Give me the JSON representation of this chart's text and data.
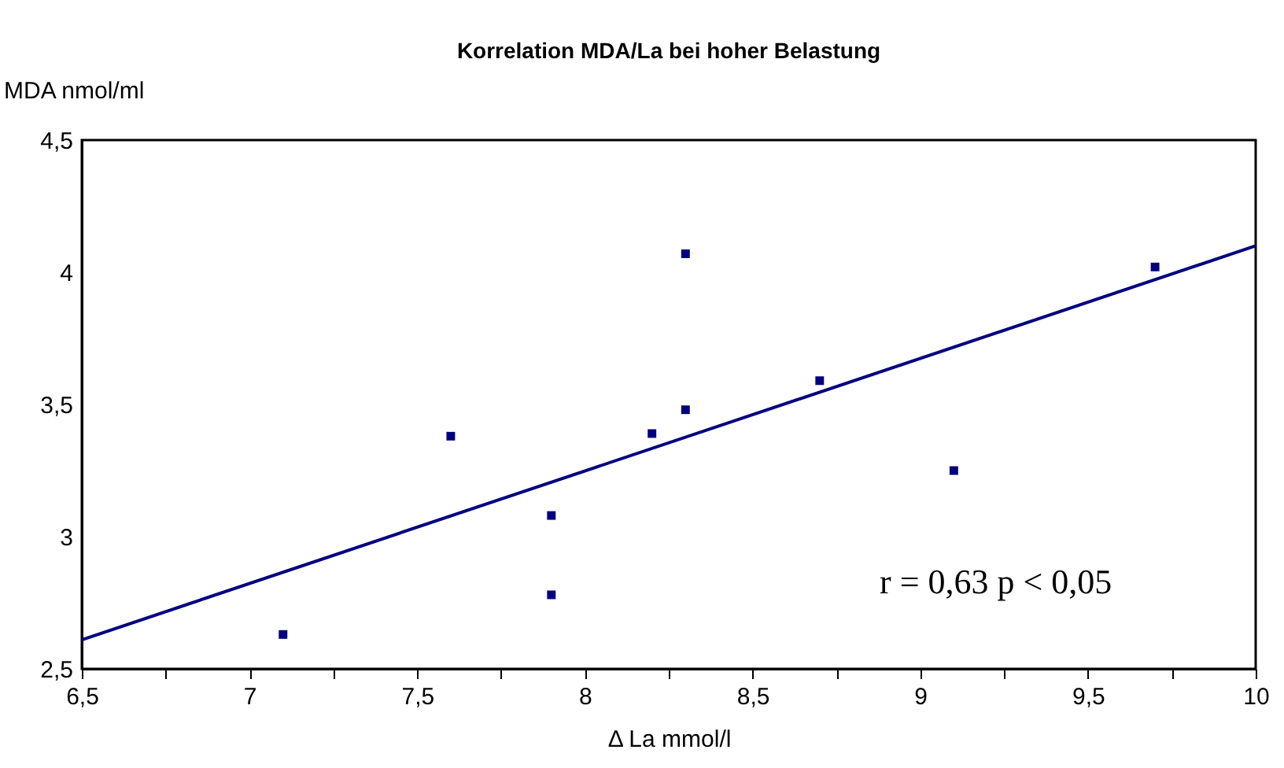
{
  "chart_data": {
    "type": "scatter",
    "title": "Korrelation MDA/La bei hoher Belastung",
    "xlabel": "Δ La mmol/l",
    "ylabel": "MDA nmol/ml",
    "annotations": [
      "r = 0,63  p < 0,05"
    ],
    "series": [
      {
        "color": "#000080",
        "x": [
          7.1,
          7.6,
          7.9,
          7.9,
          8.2,
          8.3,
          8.3,
          8.7,
          9.1,
          9.7
        ],
        "values": [
          2.63,
          3.38,
          3.08,
          2.78,
          3.39,
          4.07,
          3.48,
          3.59,
          3.25,
          4.02
        ]
      },
      {
        "type": "line",
        "marker": "none",
        "color": "#000080",
        "x": [
          6.5,
          10
        ],
        "values": [
          2.61,
          4.1
        ]
      }
    ],
    "marker": "square",
    "grid": false,
    "xlim": [
      6.5,
      10
    ],
    "xticks": [
      {
        "value": 6.5,
        "label": "6,5"
      },
      {
        "value": 6.75,
        "label": null
      },
      7,
      {
        "value": 7.25,
        "label": null
      },
      {
        "value": 7.5,
        "label": "7,5"
      },
      {
        "value": 7.75,
        "label": null
      },
      8,
      {
        "value": 8.25,
        "label": null
      },
      {
        "value": 8.5,
        "label": "8,5"
      },
      {
        "value": 8.75,
        "label": null
      },
      9,
      {
        "value": 9.25,
        "label": null
      },
      {
        "value": 9.5,
        "label": "9,5"
      },
      {
        "value": 9.75,
        "label": null
      },
      10
    ],
    "ylim": [
      2.5,
      4.5
    ],
    "yticks": [
      {
        "value": 2.5,
        "label": "2,5"
      },
      3,
      {
        "value": 3.5,
        "label": "3,5"
      },
      4,
      {
        "value": 4.5,
        "label": "4,5"
      }
    ]
  }
}
